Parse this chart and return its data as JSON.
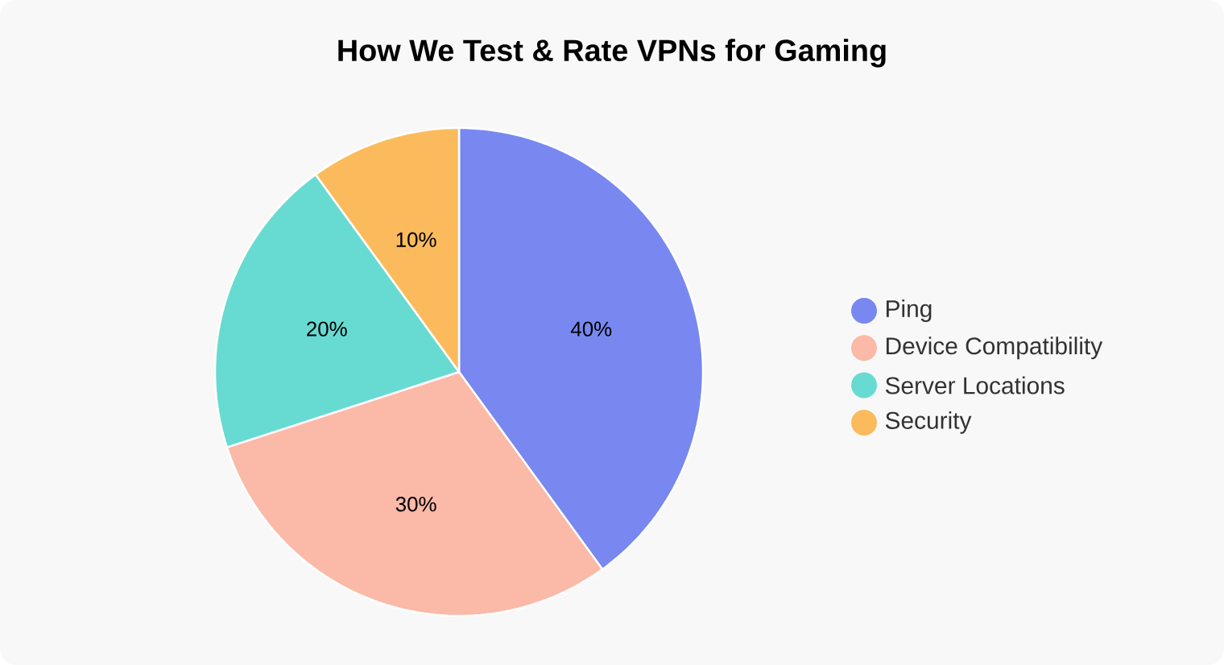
{
  "chart_data": {
    "type": "pie",
    "title": "How We Test & Rate VPNs for Gaming",
    "categories": [
      "Ping",
      "Device Compatibility",
      "Server Locations",
      "Security"
    ],
    "values": [
      40,
      30,
      20,
      10
    ],
    "colors": [
      "#7888f0",
      "#fbb9a8",
      "#67dbd2",
      "#fbbb5c"
    ],
    "value_labels": [
      "40%",
      "30%",
      "20%",
      "10%"
    ],
    "legend": "right"
  }
}
